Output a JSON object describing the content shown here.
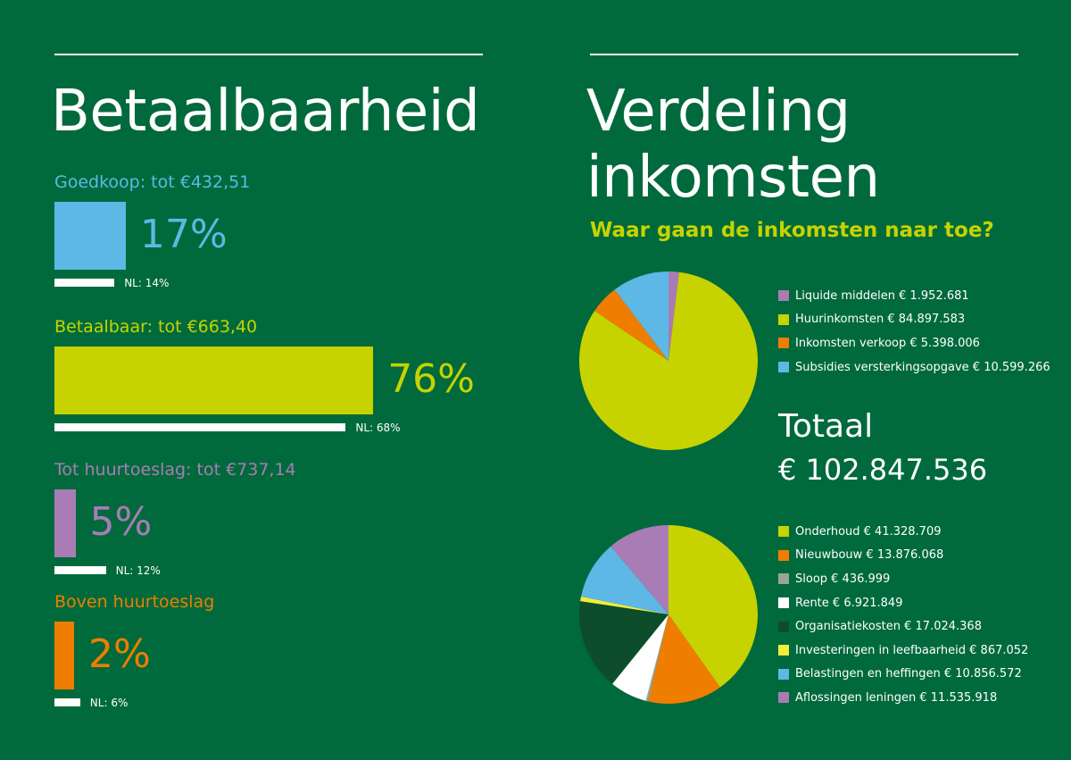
{
  "left": {
    "title": "Betaalbaarheid",
    "categories": [
      {
        "label": "Goedkoop: tot €432,51",
        "percent_text": "17%",
        "value": 17,
        "nl_text": "NL: 14%",
        "nl_value": 14,
        "color": "#5db8e6"
      },
      {
        "label": "Betaalbaar: tot €663,40",
        "percent_text": "76%",
        "value": 76,
        "nl_text": "NL: 68%",
        "nl_value": 68,
        "color": "#c6d300"
      },
      {
        "label": "Tot huurtoeslag: tot €737,14",
        "percent_text": "5%",
        "value": 5,
        "nl_text": "NL: 12%",
        "nl_value": 12,
        "color": "#a97cb6"
      },
      {
        "label": "Boven huurtoeslag",
        "percent_text": "2%",
        "value": 2,
        "nl_text": "NL: 6%",
        "nl_value": 6,
        "color": "#ef7d00"
      }
    ]
  },
  "right": {
    "title_line1": "Verdeling",
    "title_line2": "inkomsten",
    "subtitle": "Waar gaan de inkomsten naar toe?",
    "total_label": "Totaal",
    "total_value": "€ 102.847.536"
  },
  "chart_data": [
    {
      "type": "bar",
      "title": "Betaalbaarheid",
      "categories": [
        "Goedkoop: tot €432,51",
        "Betaalbaar: tot €663,40",
        "Tot huurtoeslag: tot €737,14",
        "Boven huurtoeslag"
      ],
      "series": [
        {
          "values": [
            17,
            76,
            5,
            2
          ]
        },
        {
          "values": [
            14,
            68,
            12,
            6
          ]
        }
      ]
    },
    {
      "type": "pie",
      "slices": [
        {
          "label": "Liquide middelen € 1.952.681",
          "value": 1952681,
          "color": "#a97cb6"
        },
        {
          "label": "Huurinkomsten € 84.897.583",
          "value": 84897583,
          "color": "#c6d300"
        },
        {
          "label": "Inkomsten verkoop € 5.398.006",
          "value": 5398006,
          "color": "#ef7d00"
        },
        {
          "label": "Subsidies versterkingsopgave € 10.599.266",
          "value": 10599266,
          "color": "#5db8e6"
        }
      ]
    },
    {
      "type": "pie",
      "slices": [
        {
          "label": "Onderhoud € 41.328.709",
          "value": 41328709,
          "color": "#c6d300"
        },
        {
          "label": "Nieuwbouw € 13.876.068",
          "value": 13876068,
          "color": "#ef7d00"
        },
        {
          "label": "Sloop € 436.999",
          "value": 436999,
          "color": "#9aa59a"
        },
        {
          "label": "Rente € 6.921.849",
          "value": 6921849,
          "color": "#ffffff"
        },
        {
          "label": "Organisatiekosten € 17.024.368",
          "value": 17024368,
          "color": "#0d4d2b"
        },
        {
          "label": "Investeringen in leefbaarheid € 867.052",
          "value": 867052,
          "color": "#f2ec3b"
        },
        {
          "label": "Belastingen en heffingen € 10.856.572",
          "value": 10856572,
          "color": "#5db8e6"
        },
        {
          "label": "Aflossingen leningen € 11.535.918",
          "value": 11535918,
          "color": "#a97cb6"
        }
      ]
    }
  ]
}
